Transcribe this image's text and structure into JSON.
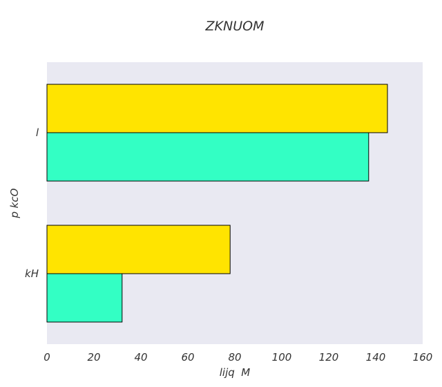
{
  "chart_data": {
    "type": "bar",
    "orientation": "horizontal",
    "title": "ZKNUOM",
    "xlabel": "lijq  M",
    "ylabel": "p kcO",
    "categories": [
      "l",
      "kH"
    ],
    "series": [
      {
        "values": [
          137,
          32
        ],
        "color": "#33ffc4"
      },
      {
        "values": [
          145,
          78
        ],
        "color": "#ffe400"
      }
    ],
    "xlim": [
      0,
      160
    ],
    "xticks": [
      0,
      20,
      40,
      60,
      80,
      100,
      120,
      140,
      160
    ],
    "grid": false,
    "legend": "none",
    "plot_background": "#e9e9f2"
  }
}
